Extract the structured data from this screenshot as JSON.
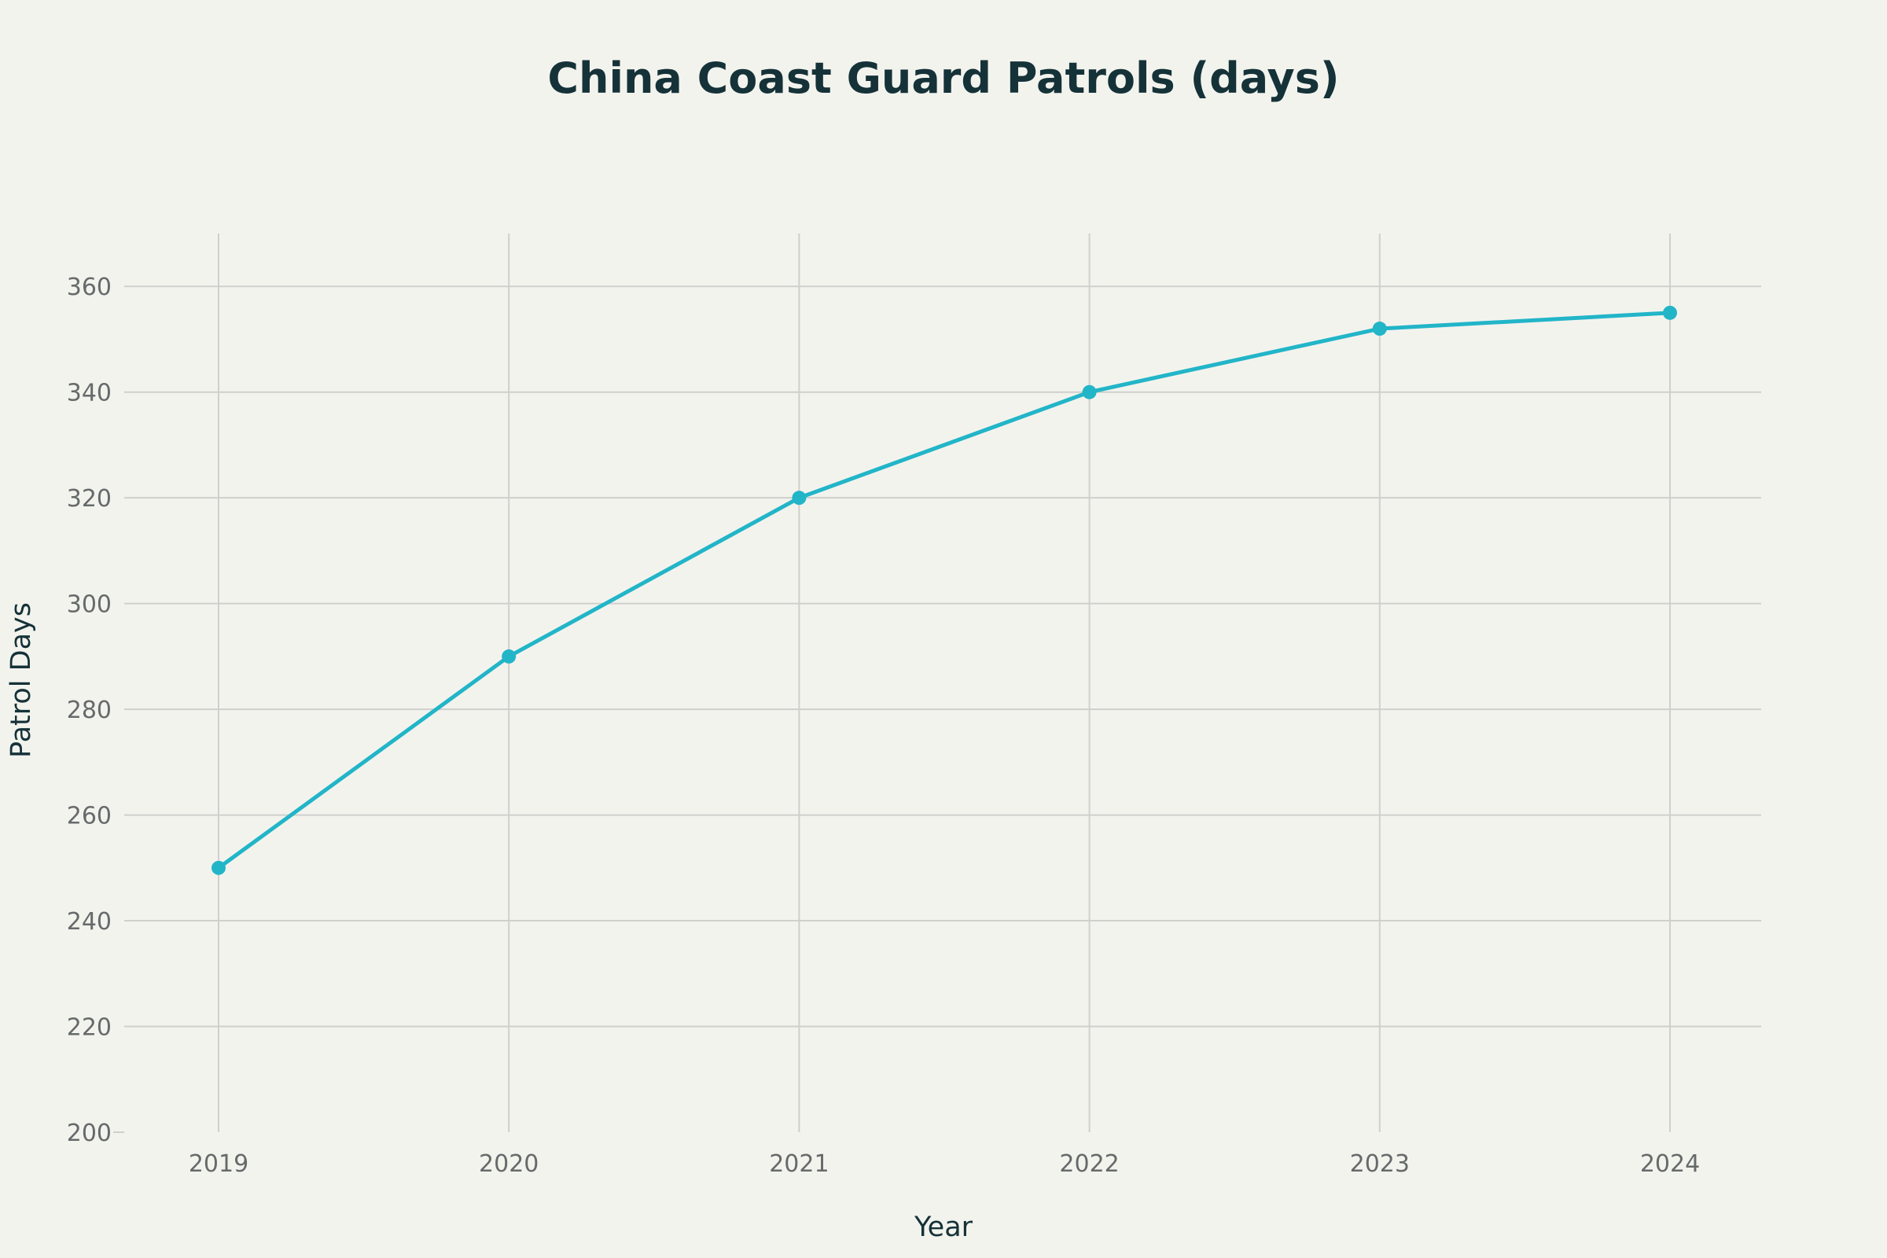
{
  "chart_data": {
    "type": "line",
    "title": "China Coast Guard Patrols (days)",
    "xlabel": "Year",
    "ylabel": "Patrol Days",
    "x": [
      "2019",
      "2020",
      "2021",
      "2022",
      "2023",
      "2024"
    ],
    "series": [
      {
        "values": [
          250,
          290,
          320,
          340,
          352,
          355
        ],
        "color": "#22b5c8"
      }
    ],
    "ylim": [
      200,
      370
    ],
    "yticks": [
      200,
      220,
      240,
      260,
      280,
      300,
      320,
      340,
      360
    ],
    "grid": true,
    "markers": true
  },
  "colors": {
    "background": "#f3f3ee",
    "grid": "#cfd0cc",
    "title": "#153238",
    "tick": "#666a6a",
    "series": "#22b5c8"
  }
}
